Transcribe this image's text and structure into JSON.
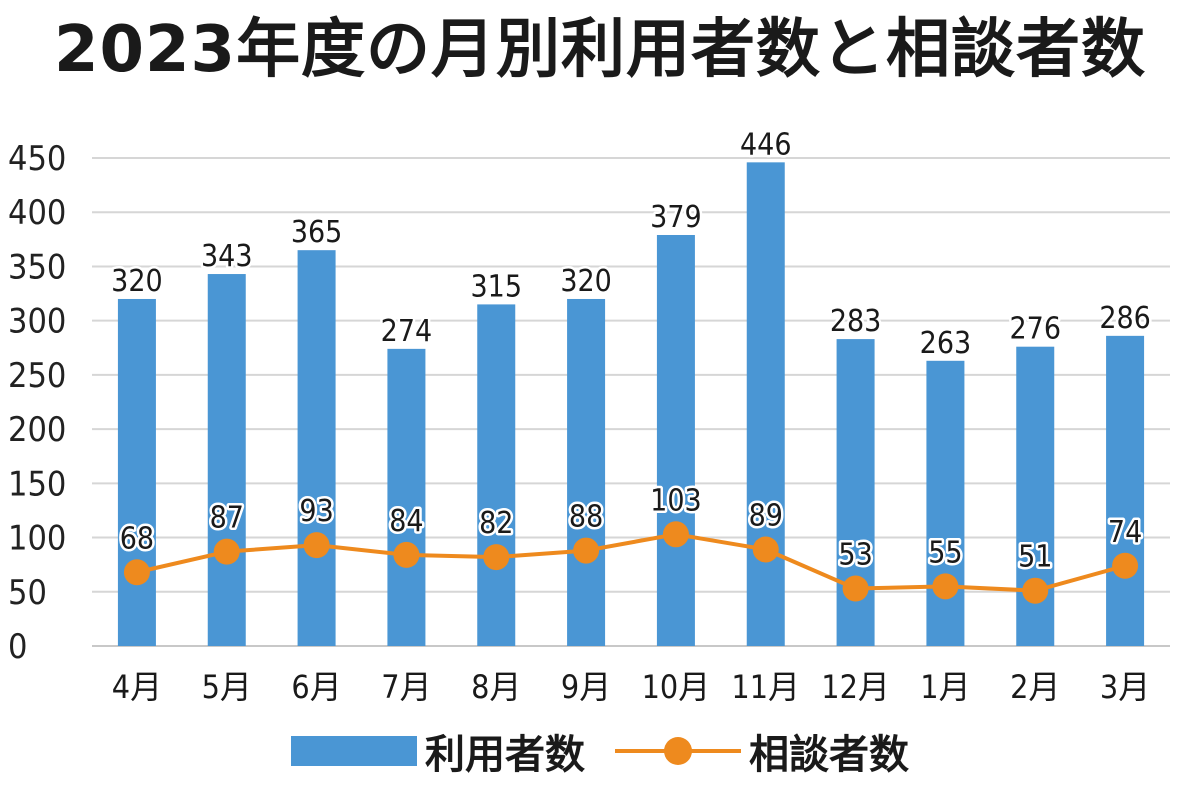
{
  "chart_data": {
    "type": "bar",
    "title": "2023年度の月別利用者数と相談者数",
    "categories": [
      "4月",
      "5月",
      "6月",
      "7月",
      "8月",
      "9月",
      "10月",
      "11月",
      "12月",
      "1月",
      "2月",
      "3月"
    ],
    "series": [
      {
        "name": "利用者数",
        "type": "bar",
        "color": "#4a96d4",
        "values": [
          320,
          343,
          365,
          274,
          315,
          320,
          379,
          446,
          283,
          263,
          276,
          286
        ]
      },
      {
        "name": "相談者数",
        "type": "line",
        "color": "#ee8a1e",
        "values": [
          68,
          87,
          93,
          84,
          82,
          88,
          103,
          89,
          53,
          55,
          51,
          74
        ]
      }
    ],
    "yticks": [
      "0",
      "50",
      "100",
      "150",
      "200",
      "250",
      "300",
      "350",
      "400",
      "450"
    ],
    "ylim": [
      0,
      450
    ],
    "grid": true,
    "legend_position": "bottom",
    "xlabel": "",
    "ylabel": ""
  }
}
